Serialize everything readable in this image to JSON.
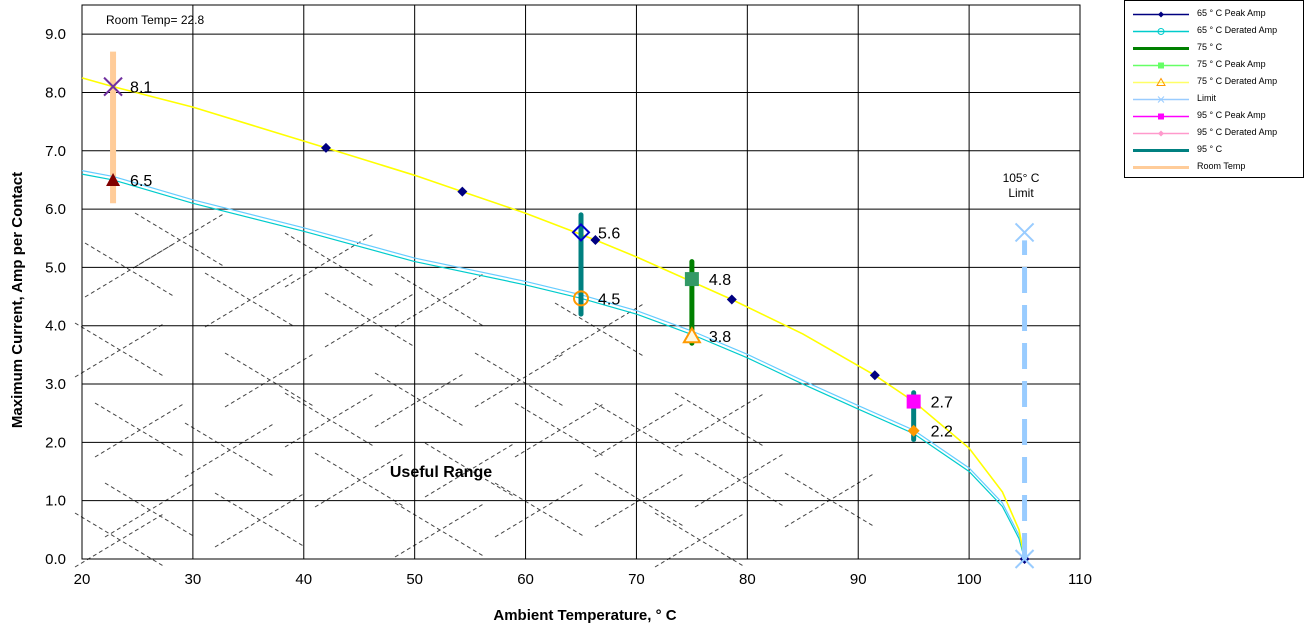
{
  "chart_data": {
    "type": "line",
    "xlabel": "Ambient Temperature,  ° C",
    "ylabel": "Maximum Current, Amp per Contact",
    "xlim": [
      20,
      110
    ],
    "ylim": [
      0,
      9.5
    ],
    "x_ticks": [
      20,
      30,
      40,
      50,
      60,
      70,
      80,
      90,
      100,
      110
    ],
    "x_tick_labels": [
      "20",
      "30",
      "40",
      "50",
      "60",
      "70",
      "80",
      "90",
      "100",
      "110"
    ],
    "y_ticks": [
      0,
      1,
      2,
      3,
      4,
      5,
      6,
      7,
      8,
      9
    ],
    "y_tick_labels": [
      "0.0",
      "1.0",
      "2.0",
      "3.0",
      "4.0",
      "5.0",
      "6.0",
      "7.0",
      "8.0",
      "9.0"
    ],
    "grid": true,
    "legend_position": "top-right outside plot",
    "annotations": {
      "room_temp": "Room Temp= 22.8",
      "limit": [
        "105° C",
        "Limit"
      ],
      "useful_range": "Useful Range"
    },
    "series": [
      {
        "name": "65  ° C Peak Amp",
        "color": "#ffff00",
        "marker_color": "#000080",
        "x": [
          20,
          22.8,
          30,
          42,
          50,
          54.3,
          60,
          66.3,
          70,
          78.6,
          85,
          91.5,
          95,
          100,
          103,
          104.5,
          105
        ],
        "y": [
          8.25,
          8.1,
          7.75,
          7.05,
          6.58,
          6.3,
          5.93,
          5.47,
          5.18,
          4.45,
          3.86,
          3.15,
          2.7,
          1.9,
          1.15,
          0.5,
          0.0
        ],
        "marker_points": [
          [
            42.0,
            7.05
          ],
          [
            54.3,
            6.3
          ],
          [
            66.3,
            5.47
          ],
          [
            78.6,
            4.45
          ],
          [
            91.5,
            3.15
          ],
          [
            105.0,
            0.0
          ]
        ]
      },
      {
        "name": "65  ° C Derated Amp",
        "color": "#66ccff",
        "x": [
          20,
          22.8,
          30,
          40,
          50,
          60,
          65,
          70,
          75,
          80,
          85,
          90,
          95,
          100,
          103,
          104.5,
          105
        ],
        "y": [
          6.6,
          6.5,
          6.1,
          5.62,
          5.1,
          4.7,
          4.47,
          4.2,
          3.85,
          3.45,
          3.0,
          2.57,
          2.15,
          1.5,
          0.9,
          0.35,
          0.0
        ]
      },
      {
        "name": "75  ° C",
        "color": "#008000",
        "x": [
          75,
          75
        ],
        "y": [
          3.7,
          5.1
        ]
      },
      {
        "name": "75  ° C Peak Amp",
        "color": "#339966",
        "x": [
          75
        ],
        "y": [
          4.8
        ]
      },
      {
        "name": "75  ° C Derated Amp",
        "color": "#ff9900",
        "x": [
          75
        ],
        "y": [
          3.8
        ]
      },
      {
        "name": "Limit",
        "color": "#99ccff",
        "x": [
          105,
          105
        ],
        "y": [
          0.0,
          5.6
        ]
      },
      {
        "name": "95  ° C Peak Amp",
        "color": "#ff00ff",
        "x": [
          95
        ],
        "y": [
          2.7
        ]
      },
      {
        "name": "95  ° C Derated Amp",
        "color": "#ff9900",
        "x": [
          95
        ],
        "y": [
          2.2
        ]
      },
      {
        "name": "95  ° C",
        "color": "#008080",
        "x": [
          95,
          95
        ],
        "y": [
          2.05,
          2.85
        ]
      },
      {
        "name": "Room Temp",
        "color": "#ffcc99",
        "x": [
          22.8,
          22.8
        ],
        "y": [
          6.1,
          8.7
        ]
      }
    ],
    "extra_bars": [
      {
        "x": 65,
        "y": [
          4.2,
          5.9
        ],
        "color": "#008080"
      }
    ],
    "points": [
      {
        "x": 22.8,
        "y": 8.1,
        "label": "8.1",
        "marker": "x",
        "color": "#7030a0"
      },
      {
        "x": 22.8,
        "y": 6.5,
        "label": "6.5",
        "marker": "triangle",
        "color": "#800000"
      },
      {
        "x": 65,
        "y": 5.6,
        "label": "5.6",
        "marker": "diamond",
        "color": "#0000cc"
      },
      {
        "x": 65,
        "y": 4.47,
        "label": "4.5",
        "marker": "circle",
        "color": "#ff9900"
      },
      {
        "x": 75,
        "y": 4.8,
        "label": "4.8",
        "marker": "square",
        "color": "#339966"
      },
      {
        "x": 75,
        "y": 3.82,
        "label": "3.8",
        "marker": "triangle-open",
        "color": "#ff9900"
      },
      {
        "x": 95,
        "y": 2.7,
        "label": "2.7",
        "marker": "square",
        "color": "#ff00ff"
      },
      {
        "x": 95,
        "y": 2.2,
        "label": "2.2",
        "marker": "diamond-small",
        "color": "#ff9900"
      },
      {
        "x": 105,
        "y": 5.6,
        "label": "",
        "marker": "x",
        "color": "#99ccff"
      },
      {
        "x": 105,
        "y": 0.0,
        "label": "",
        "marker": "x",
        "color": "#99ccff"
      }
    ]
  },
  "legend": {
    "items": [
      {
        "label": "65  ° C Peak Amp",
        "color": "#000080",
        "marker": "diamond"
      },
      {
        "label": "65  ° C Derated Amp",
        "color": "#00cccc",
        "marker": "circle"
      },
      {
        "label": "75  ° C",
        "color": "#008000",
        "marker": "none"
      },
      {
        "label": "75  ° C Peak Amp",
        "color": "#66ff66",
        "marker": "square"
      },
      {
        "label": "75  ° C Derated Amp",
        "color": "#ffff66",
        "marker": "triangle"
      },
      {
        "label": "Limit",
        "color": "#99ccff",
        "marker": "x"
      },
      {
        "label": "95  ° C Peak Amp",
        "color": "#ff00ff",
        "marker": "square"
      },
      {
        "label": "95  ° C Derated Amp",
        "color": "#ff99cc",
        "marker": "diamond"
      },
      {
        "label": "95  ° C",
        "color": "#008080",
        "marker": "none"
      },
      {
        "label": "Room Temp",
        "color": "#ffcc99",
        "marker": "none"
      }
    ]
  }
}
